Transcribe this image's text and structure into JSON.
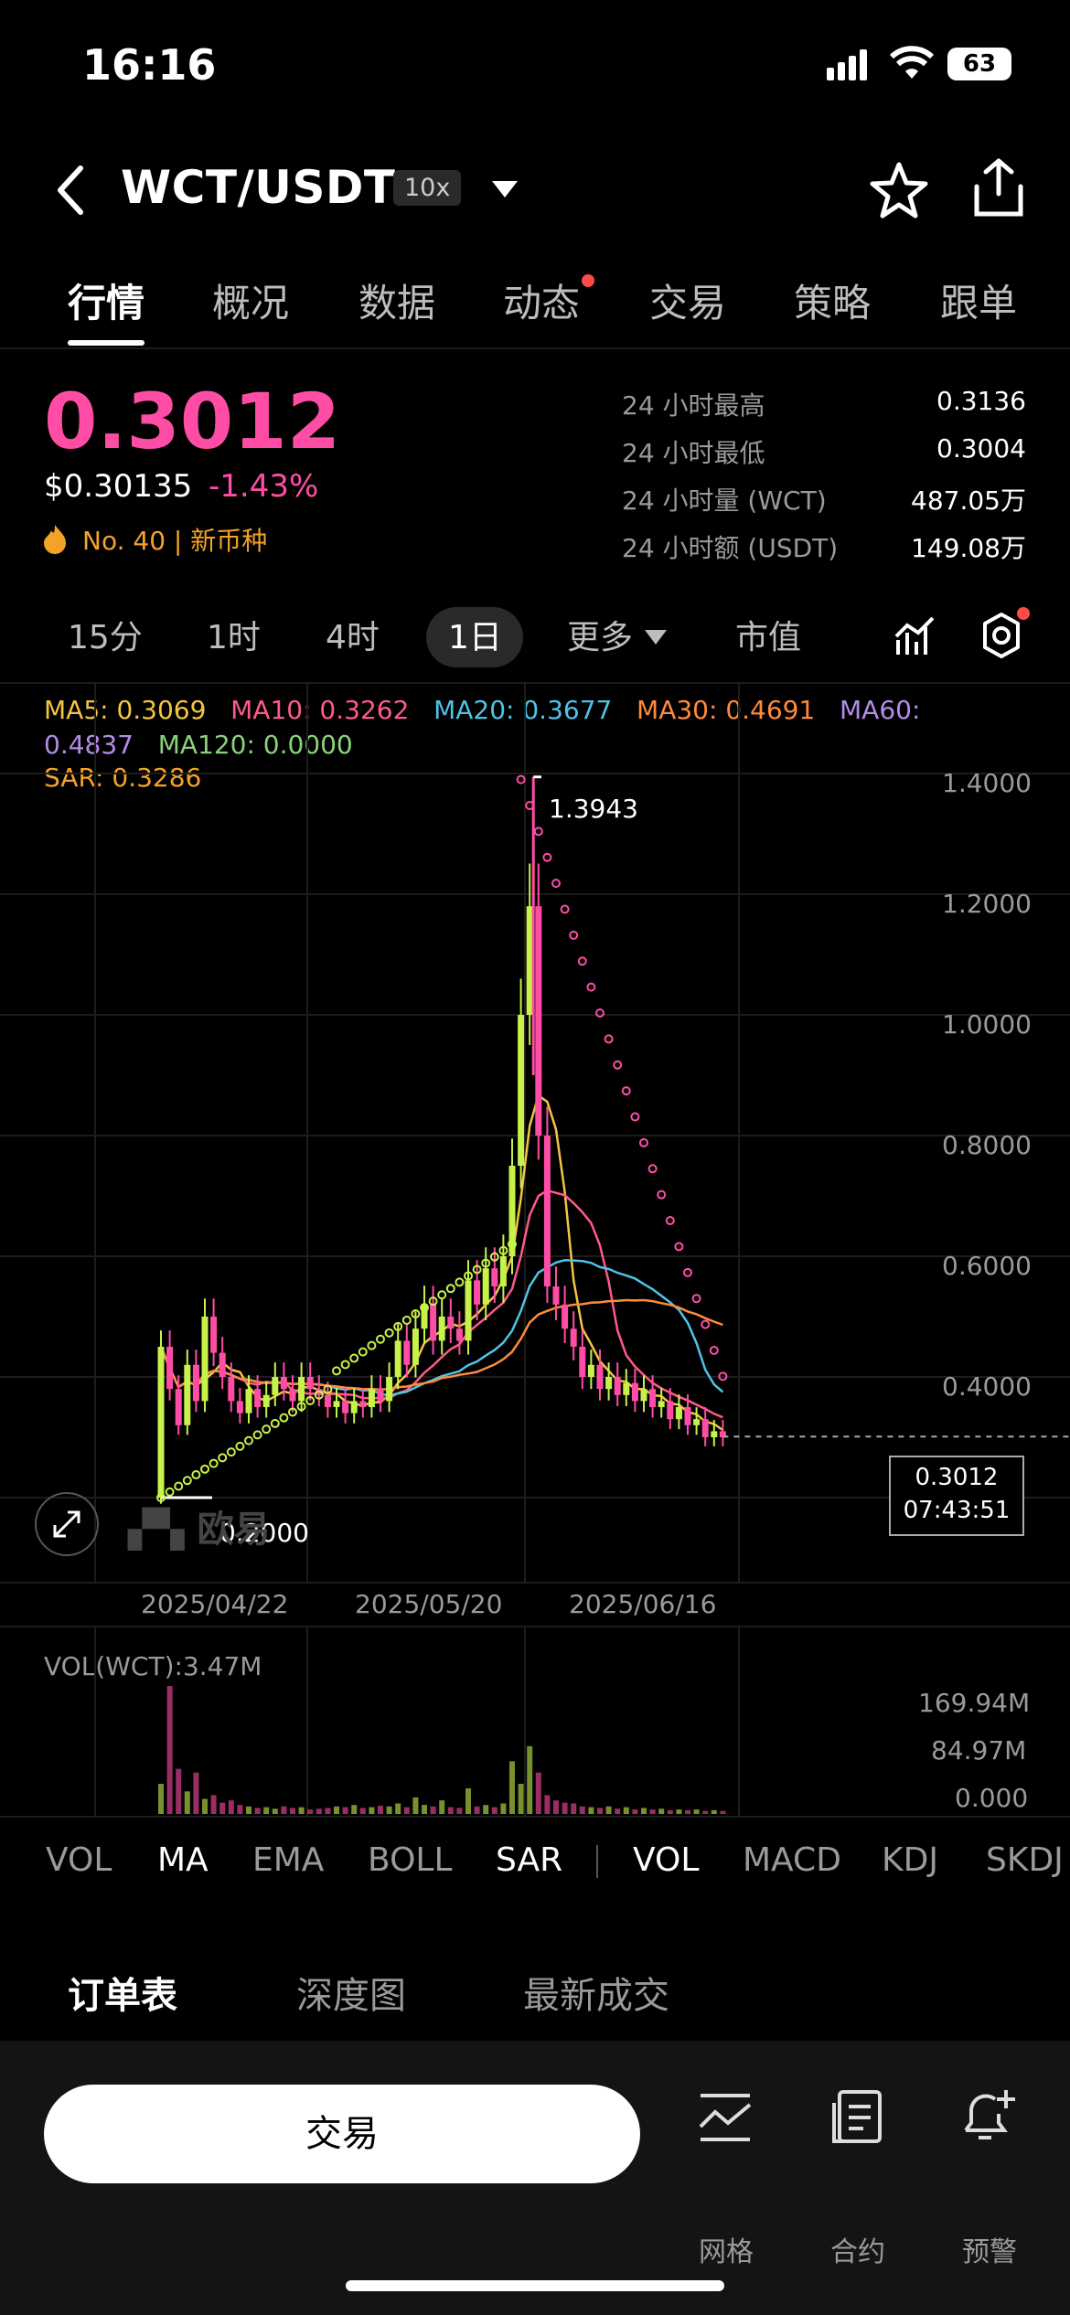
{
  "status_bar": {
    "time": "16:16",
    "battery": "63"
  },
  "header": {
    "pair": "WCT/USDT",
    "leverage": "10x"
  },
  "tabs": [
    {
      "label": "行情",
      "active": true
    },
    {
      "label": "概况"
    },
    {
      "label": "数据"
    },
    {
      "label": "动态",
      "dot": true
    },
    {
      "label": "交易"
    },
    {
      "label": "策略"
    },
    {
      "label": "跟单"
    }
  ],
  "ticker": {
    "price": "0.3012",
    "usd_price": "$0.30135",
    "change": "-1.43%",
    "rank": "No. 40",
    "tag": "新币种",
    "stats": [
      {
        "label": "24 小时最高",
        "value": "0.3136"
      },
      {
        "label": "24 小时最低",
        "value": "0.3004"
      },
      {
        "label": "24 小时量 (WCT)",
        "value": "487.05万"
      },
      {
        "label": "24 小时额 (USDT)",
        "value": "149.08万"
      }
    ]
  },
  "intervals": [
    "15分",
    "1时",
    "4时",
    "1日",
    "更多",
    "市值"
  ],
  "indicators": {
    "ma5": "MA5: 0.3069",
    "ma10": "MA10: 0.3262",
    "ma20": "MA20: 0.3677",
    "ma30": "MA30: 0.4691",
    "ma60_a": "MA60:",
    "ma60_b": "0.4837",
    "ma120": "MA120: 0.0000",
    "sar": "SAR: 0.3286"
  },
  "colors": {
    "accent": "#ff4da6",
    "up": "#c6f24a",
    "down": "#ff4da6",
    "ma5": "#f4c542",
    "ma10": "#ff5a8a",
    "ma20": "#4fc3e6",
    "ma30": "#ff8a3d",
    "ma60": "#b48ce8",
    "ma120": "#8bd17c",
    "sar": "#f4a328"
  },
  "chart_data": {
    "type": "candlestick",
    "y_ticks": [
      "1.4000",
      "1.2000",
      "1.0000",
      "0.8000",
      "0.6000",
      "0.4000"
    ],
    "ylim": [
      0.12,
      1.5
    ],
    "x_ticks": [
      "2025/04/22",
      "2025/05/20",
      "2025/06/16"
    ],
    "high_label": "1.3943",
    "low_label": "0.2000",
    "last_price": "0.3012",
    "countdown": "07:43:51",
    "candles": [
      [
        0.2,
        0.45
      ],
      [
        0.45,
        0.38
      ],
      [
        0.38,
        0.32
      ],
      [
        0.32,
        0.42
      ],
      [
        0.42,
        0.36
      ],
      [
        0.36,
        0.5
      ],
      [
        0.5,
        0.44
      ],
      [
        0.44,
        0.4
      ],
      [
        0.4,
        0.36
      ],
      [
        0.36,
        0.34
      ],
      [
        0.34,
        0.38
      ],
      [
        0.38,
        0.35
      ],
      [
        0.35,
        0.37
      ],
      [
        0.37,
        0.4
      ],
      [
        0.4,
        0.38
      ],
      [
        0.38,
        0.36
      ],
      [
        0.36,
        0.4
      ],
      [
        0.4,
        0.38
      ],
      [
        0.38,
        0.37
      ],
      [
        0.37,
        0.35
      ],
      [
        0.35,
        0.36
      ],
      [
        0.36,
        0.34
      ],
      [
        0.34,
        0.36
      ],
      [
        0.36,
        0.35
      ],
      [
        0.35,
        0.38
      ],
      [
        0.38,
        0.36
      ],
      [
        0.36,
        0.4
      ],
      [
        0.4,
        0.46
      ],
      [
        0.46,
        0.42
      ],
      [
        0.42,
        0.48
      ],
      [
        0.48,
        0.52
      ],
      [
        0.52,
        0.46
      ],
      [
        0.46,
        0.5
      ],
      [
        0.5,
        0.48
      ],
      [
        0.48,
        0.46
      ],
      [
        0.46,
        0.56
      ],
      [
        0.56,
        0.52
      ],
      [
        0.52,
        0.58
      ],
      [
        0.58,
        0.55
      ],
      [
        0.55,
        0.6
      ],
      [
        0.6,
        0.75
      ],
      [
        0.75,
        1.0
      ],
      [
        1.0,
        1.18
      ],
      [
        1.18,
        0.8
      ],
      [
        0.8,
        0.55
      ],
      [
        0.55,
        0.52
      ],
      [
        0.52,
        0.48
      ],
      [
        0.48,
        0.45
      ],
      [
        0.45,
        0.4
      ],
      [
        0.4,
        0.42
      ],
      [
        0.42,
        0.38
      ],
      [
        0.38,
        0.4
      ],
      [
        0.4,
        0.37
      ],
      [
        0.37,
        0.39
      ],
      [
        0.39,
        0.36
      ],
      [
        0.36,
        0.38
      ],
      [
        0.38,
        0.35
      ],
      [
        0.35,
        0.36
      ],
      [
        0.36,
        0.33
      ],
      [
        0.33,
        0.35
      ],
      [
        0.35,
        0.32
      ],
      [
        0.32,
        0.33
      ],
      [
        0.33,
        0.3
      ],
      [
        0.3,
        0.31
      ],
      [
        0.31,
        0.3
      ]
    ],
    "volume_label": "VOL(WCT):3.47M",
    "volume_ticks": [
      "169.94M",
      "84.97M",
      "0.000"
    ],
    "volumes": [
      40,
      170,
      60,
      30,
      55,
      20,
      25,
      15,
      18,
      12,
      10,
      8,
      9,
      7,
      10,
      8,
      9,
      6,
      7,
      8,
      10,
      9,
      12,
      8,
      9,
      11,
      10,
      14,
      9,
      22,
      12,
      10,
      18,
      9,
      8,
      34,
      10,
      12,
      9,
      14,
      70,
      40,
      90,
      55,
      25,
      18,
      15,
      14,
      10,
      9,
      8,
      10,
      7,
      9,
      6,
      8,
      6,
      7,
      5,
      6,
      5,
      6,
      4,
      5,
      4
    ]
  },
  "indicator_tabs": [
    "VOL",
    "MA",
    "EMA",
    "BOLL",
    "SAR",
    "VOL",
    "MACD",
    "KDJ",
    "SKDJ"
  ],
  "order_tabs": [
    "订单表",
    "深度图",
    "最新成交"
  ],
  "bottom": {
    "trade": "交易",
    "grid": "网格",
    "contract": "合约",
    "alert": "预警"
  }
}
